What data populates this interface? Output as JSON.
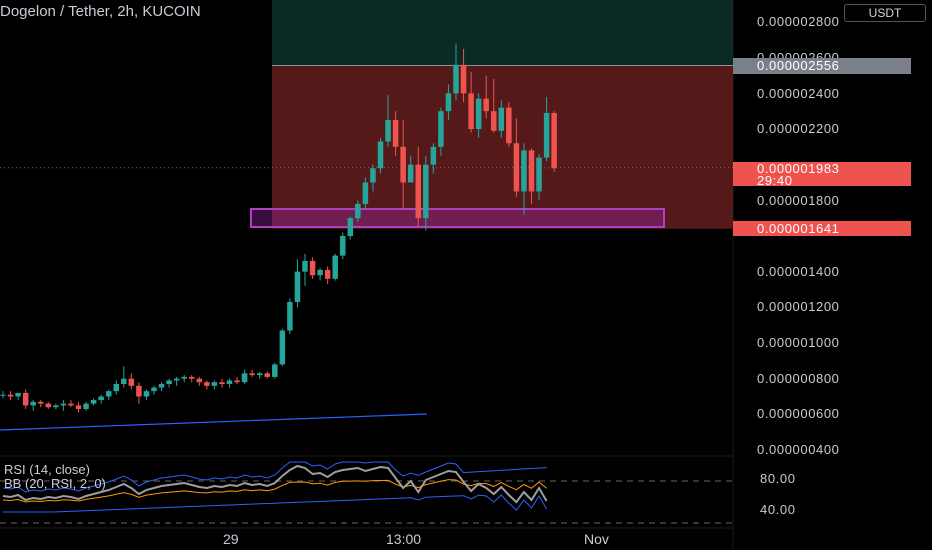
{
  "header": {
    "symbol_title": "Dogelon / Tether, 2h, KUCOIN",
    "currency": "USDT"
  },
  "price_axis": {
    "labels": [
      "0.000002800",
      "0.000002600",
      "0.000002400",
      "0.000002200",
      "0.000001800",
      "0.000001400",
      "0.000001200",
      "0.000001000",
      "0.000000800",
      "0.000000600",
      "0.000000400"
    ],
    "position_top_tag": "0.000002556",
    "last_price": "0.000001983",
    "countdown": "29:40",
    "position_bottom_tag": "0.000001641"
  },
  "rsi_axis": {
    "labels": [
      "80.00",
      "40.00"
    ]
  },
  "time_axis": {
    "labels": [
      "29",
      "13:00",
      "Nov"
    ]
  },
  "indicators": {
    "rsi": "RSI (14, close)",
    "bb": "BB (20, RSI, 2, 0)"
  },
  "colors": {
    "up": "#26a69a",
    "down": "#ef5350",
    "target_zone": "#0b2a25",
    "stop_zone": "#5a1a1a",
    "support_box": "#b040c0",
    "rsi_line": "#9e9e9e",
    "bb_band": "#2962ff",
    "bb_basis": "#ff9800"
  },
  "chart_data": {
    "type": "candlestick",
    "timeframe": "2h",
    "ylim": [
      4e-07,
      2.9e-06
    ],
    "candles": [
      [
        7.1e-07,
        7.3e-07,
        6.9e-07,
        7.1e-07
      ],
      [
        7.1e-07,
        7.3e-07,
        6.8e-07,
        7e-07
      ],
      [
        7e-07,
        7.2e-07,
        6.8e-07,
        7.2e-07
      ],
      [
        7.2e-07,
        7.4e-07,
        6.3e-07,
        6.5e-07
      ],
      [
        6.5e-07,
        6.8e-07,
        6.2e-07,
        6.7e-07
      ],
      [
        6.7e-07,
        6.8e-07,
        6.4e-07,
        6.6e-07
      ],
      [
        6.6e-07,
        6.7e-07,
        6.3e-07,
        6.4e-07
      ],
      [
        6.4e-07,
        6.6e-07,
        6.3e-07,
        6.5e-07
      ],
      [
        6.5e-07,
        6.8e-07,
        6.2e-07,
        6.6e-07
      ],
      [
        6.6e-07,
        6.8e-07,
        6.4e-07,
        6.5e-07
      ],
      [
        6.5e-07,
        6.7e-07,
        6.1e-07,
        6.3e-07
      ],
      [
        6.3e-07,
        6.7e-07,
        6.2e-07,
        6.6e-07
      ],
      [
        6.6e-07,
        6.9e-07,
        6.5e-07,
        6.8e-07
      ],
      [
        6.8e-07,
        7.1e-07,
        6.6e-07,
        7e-07
      ],
      [
        7e-07,
        7.4e-07,
        6.8e-07,
        7.3e-07
      ],
      [
        7.3e-07,
        7.9e-07,
        7.1e-07,
        7.7e-07
      ],
      [
        7.7e-07,
        8.7e-07,
        7.5e-07,
        8e-07
      ],
      [
        8e-07,
        8.3e-07,
        7.4e-07,
        7.6e-07
      ],
      [
        7.6e-07,
        7.8e-07,
        6.6e-07,
        7e-07
      ],
      [
        7e-07,
        7.4e-07,
        6.8e-07,
        7.3e-07
      ],
      [
        7.3e-07,
        7.6e-07,
        7.1e-07,
        7.5e-07
      ],
      [
        7.5e-07,
        7.8e-07,
        7.3e-07,
        7.7e-07
      ],
      [
        7.7e-07,
        8e-07,
        7.5e-07,
        7.9e-07
      ],
      [
        7.9e-07,
        8.1e-07,
        7.6e-07,
        8e-07
      ],
      [
        8e-07,
        8.2e-07,
        7.8e-07,
        8.1e-07
      ],
      [
        8.1e-07,
        8.2e-07,
        7.8e-07,
        8e-07
      ],
      [
        8e-07,
        8.1e-07,
        7.6e-07,
        7.8e-07
      ],
      [
        7.8e-07,
        7.9e-07,
        7.4e-07,
        7.6e-07
      ],
      [
        7.6e-07,
        7.9e-07,
        7.4e-07,
        7.8e-07
      ],
      [
        7.8e-07,
        8e-07,
        7.5e-07,
        7.7e-07
      ],
      [
        7.7e-07,
        8e-07,
        7.5e-07,
        7.9e-07
      ],
      [
        7.9e-07,
        8.1e-07,
        7.7e-07,
        7.8e-07
      ],
      [
        7.8e-07,
        8.5e-07,
        7.7e-07,
        8.3e-07
      ],
      [
        8.3e-07,
        8.5e-07,
        8.1e-07,
        8.2e-07
      ],
      [
        8.2e-07,
        8.4e-07,
        8e-07,
        8.3e-07
      ],
      [
        8.3e-07,
        8.4e-07,
        8e-07,
        8.1e-07
      ],
      [
        8.1e-07,
        8.9e-07,
        8e-07,
        8.8e-07
      ],
      [
        8.8e-07,
        1.08e-06,
        8.7e-07,
        1.07e-06
      ],
      [
        1.07e-06,
        1.25e-06,
        1.05e-06,
        1.23e-06
      ],
      [
        1.23e-06,
        1.47e-06,
        1.2e-06,
        1.4e-06
      ],
      [
        1.4e-06,
        1.5e-06,
        1.32e-06,
        1.46e-06
      ],
      [
        1.46e-06,
        1.48e-06,
        1.36e-06,
        1.38e-06
      ],
      [
        1.38e-06,
        1.42e-06,
        1.35e-06,
        1.41e-06
      ],
      [
        1.41e-06,
        1.43e-06,
        1.33e-06,
        1.36e-06
      ],
      [
        1.36e-06,
        1.5e-06,
        1.35e-06,
        1.49e-06
      ],
      [
        1.49e-06,
        1.62e-06,
        1.47e-06,
        1.6e-06
      ],
      [
        1.6e-06,
        1.71e-06,
        1.58e-06,
        1.7e-06
      ],
      [
        1.7e-06,
        1.8e-06,
        1.68e-06,
        1.78e-06
      ],
      [
        1.78e-06,
        1.93e-06,
        1.75e-06,
        1.9e-06
      ],
      [
        1.9e-06,
        2e-06,
        1.85e-06,
        1.98e-06
      ],
      [
        1.98e-06,
        2.15e-06,
        1.95e-06,
        2.13e-06
      ],
      [
        2.13e-06,
        2.39e-06,
        2.1e-06,
        2.25e-06
      ],
      [
        2.25e-06,
        2.3e-06,
        2.05e-06,
        2.1e-06
      ],
      [
        2.1e-06,
        2.25e-06,
        1.75e-06,
        1.9e-06
      ],
      [
        1.9e-06,
        2.05e-06,
        1.9e-06,
        2e-06
      ],
      [
        2e-06,
        2.1e-06,
        1.65e-06,
        1.7e-06
      ],
      [
        1.7e-06,
        2.05e-06,
        1.63e-06,
        2e-06
      ],
      [
        2e-06,
        2.12e-06,
        1.95e-06,
        2.1e-06
      ],
      [
        2.1e-06,
        2.32e-06,
        2.05e-06,
        2.3e-06
      ],
      [
        2.3e-06,
        2.45e-06,
        2.25e-06,
        2.4e-06
      ],
      [
        2.4e-06,
        2.68e-06,
        2.36e-06,
        2.56e-06
      ],
      [
        2.56e-06,
        2.65e-06,
        2.35e-06,
        2.4e-06
      ],
      [
        2.4e-06,
        2.52e-06,
        2.18e-06,
        2.2e-06
      ],
      [
        2.2e-06,
        2.4e-06,
        2.15e-06,
        2.37e-06
      ],
      [
        2.37e-06,
        2.5e-06,
        2.26e-06,
        2.3e-06
      ],
      [
        2.3e-06,
        2.48e-06,
        2.18e-06,
        2.19e-06
      ],
      [
        2.19e-06,
        2.36e-06,
        2.15e-06,
        2.32e-06
      ],
      [
        2.32e-06,
        2.35e-06,
        2.1e-06,
        2.12e-06
      ],
      [
        2.12e-06,
        2.26e-06,
        1.82e-06,
        1.85e-06
      ],
      [
        1.85e-06,
        2.12e-06,
        1.72e-06,
        2.08e-06
      ],
      [
        2.08e-06,
        2.09e-06,
        1.78e-06,
        1.85e-06
      ],
      [
        1.85e-06,
        2.06e-06,
        1.8e-06,
        2.04e-06
      ],
      [
        2.04e-06,
        2.38e-06,
        2.02e-06,
        2.29e-06
      ],
      [
        2.29e-06,
        2.3e-06,
        1.96e-06,
        1.98e-06
      ]
    ],
    "position": {
      "entry_top": 2.556e-06,
      "entry_bottom": 1.641e-06,
      "last": 1.983e-06
    },
    "rsi": {
      "levels": [
        80,
        40
      ]
    }
  }
}
